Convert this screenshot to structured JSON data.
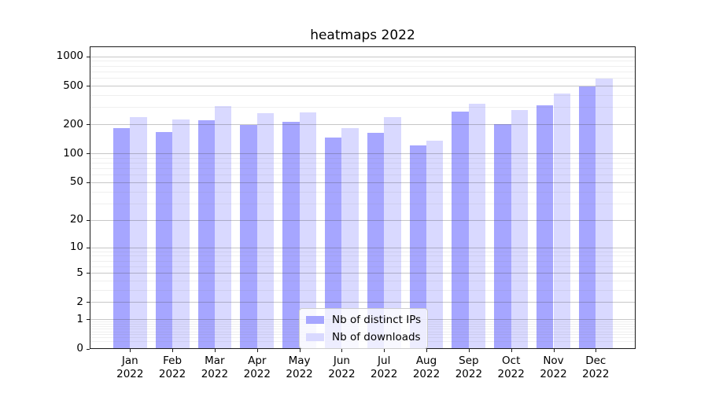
{
  "chart_data": {
    "type": "bar",
    "title": "heatmaps 2022",
    "categories": [
      "Jan",
      "Feb",
      "Mar",
      "Apr",
      "May",
      "Jun",
      "Jul",
      "Aug",
      "Sep",
      "Oct",
      "Nov",
      "Dec"
    ],
    "year": "2022",
    "series": [
      {
        "name": "Nb of distinct IPs",
        "color": "#a6a6ff",
        "values": [
          182,
          166,
          220,
          195,
          212,
          146,
          162,
          120,
          268,
          200,
          315,
          495
        ]
      },
      {
        "name": "Nb of downloads",
        "color": "#d9d9ff",
        "values": [
          238,
          225,
          310,
          260,
          265,
          182,
          237,
          135,
          328,
          280,
          415,
          590
        ]
      }
    ],
    "xlabel": "",
    "ylabel": "",
    "yscale": "log1p",
    "yticks": [
      0,
      1,
      2,
      5,
      10,
      20,
      50,
      100,
      200,
      500,
      1000
    ],
    "ylim": [
      0,
      1270
    ],
    "grid": true,
    "legend_position": "lower center"
  }
}
